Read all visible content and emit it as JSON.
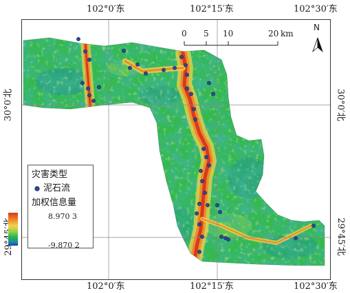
{
  "graticule": {
    "top_labels": [
      "102°0′东",
      "102°15′东",
      "102°30′东"
    ],
    "bottom_labels": [
      "102°0′东",
      "102°15′东",
      "102°30′东"
    ],
    "left_labels": [
      "30°0′北",
      "29°45′北"
    ],
    "right_labels": [
      "30°0′北",
      "29°45′北"
    ]
  },
  "scale_bar": {
    "ticks": [
      "0",
      "5",
      "10",
      "20"
    ],
    "unit": "km"
  },
  "north_arrow": {
    "label": "N",
    "icon": "north-arrow-icon"
  },
  "legend": {
    "title": "灾害类型",
    "point_label": "泥石流",
    "ramp_title": "加权信息量",
    "max_value": "8.970 3",
    "min_value": "-9.870 2"
  },
  "colors": {
    "low": "#2340a8",
    "mid_low": "#27b34e",
    "mid": "#f4d24a",
    "high": "#d73a1f",
    "debris_flow_point": "#2b4a9a"
  }
}
